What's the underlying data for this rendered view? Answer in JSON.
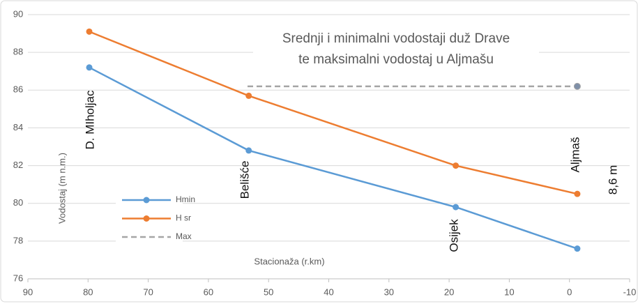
{
  "chart_data": {
    "type": "line",
    "title": [
      "Srednji i minimalni vodostaji duž Drave",
      "te maksimalni vodostaj u Aljmašu"
    ],
    "x_label": "Stacionaža (r.km)",
    "y_label": "Vodostaj (m n.m.)",
    "xlim": [
      90,
      -10
    ],
    "xticks": [
      90,
      80,
      70,
      60,
      50,
      40,
      30,
      20,
      10,
      0,
      -10
    ],
    "ylim": [
      76,
      90
    ],
    "yticks": [
      76,
      78,
      80,
      82,
      84,
      86,
      88,
      90
    ],
    "grid": true,
    "series": [
      {
        "name": "Hmin",
        "color": "#5b9bd5",
        "x": [
          79.8,
          53.3,
          18.9,
          -1.3
        ],
        "values": [
          87.2,
          82.8,
          79.8,
          77.6
        ]
      },
      {
        "name": "H sr",
        "color": "#ed7d31",
        "x": [
          79.8,
          53.3,
          18.9,
          -1.3
        ],
        "values": [
          89.1,
          85.7,
          82.0,
          80.5
        ]
      },
      {
        "name": "Max",
        "color": "#a5a5a5",
        "dash": true,
        "marker_color": "#7f90a8",
        "markers": "last",
        "x": [
          53.5,
          -1.3
        ],
        "values": [
          86.2,
          86.2
        ]
      }
    ],
    "annotations": [
      "D. MIholjac",
      "Belišće",
      "Osijek",
      "Aljmaš",
      "8,6 m"
    ]
  }
}
